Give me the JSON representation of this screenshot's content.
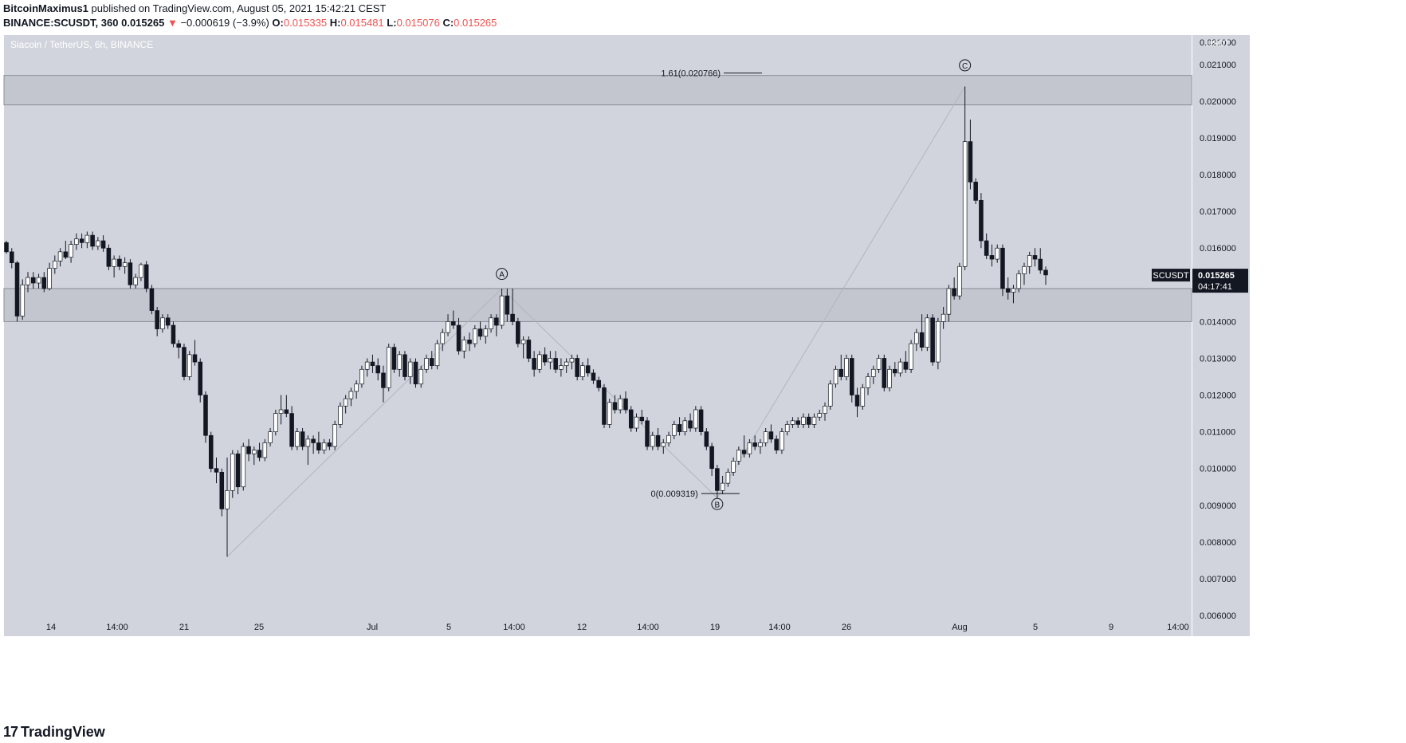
{
  "header": {
    "author": "BitcoinMaximus1",
    "published": " published on TradingView.com, August 05, 2021 15:42:21 CEST",
    "symbol_line": "BINANCE:SCUSDT, 360",
    "last": "0.015265",
    "change_arrow": "▼",
    "change": "−0.000619 (−3.9%)",
    "o_label": "O:",
    "o_value": "0.015335",
    "h_label": "H:",
    "h_value": "0.015481",
    "l_label": "L:",
    "l_value": "0.015076",
    "c_label": "C:",
    "c_value": "0.015265"
  },
  "footer": {
    "logo_glyph": "17",
    "brand": "TradingView"
  },
  "colors": {
    "plot_bg": "#d1d4dc",
    "frame": "#ffffff",
    "zone_fill": "#c3c6cf",
    "zone_border": "#8a8d95",
    "candle_up": "#ffffff",
    "candle_down": "#131722",
    "wave_line": "#b2b5be",
    "text": "#131722",
    "red": "#ef5350",
    "price_label_bg": "#131722"
  },
  "chart_data": {
    "type": "candlestick",
    "title": "Siacoin / TetherUS, 6h, BINANCE",
    "currency_label": "USDT",
    "ylim": [
      0.006,
      0.0218
    ],
    "y_ticks": [
      "0.006000",
      "0.007000",
      "0.008000",
      "0.009000",
      "0.010000",
      "0.011000",
      "0.012000",
      "0.013000",
      "0.014000",
      "0.015000",
      "0.016000",
      "0.017000",
      "0.018000",
      "0.019000",
      "0.020000",
      "0.021000",
      "0.021000"
    ],
    "x_ticks": [
      "14",
      "14:00",
      "21",
      "25",
      "Jul",
      "5",
      "14:00",
      "12",
      "14:00",
      "19",
      "14:00",
      "26",
      "Aug",
      "5",
      "9",
      "14:00"
    ],
    "last_price": {
      "symbol": "SCUSDT",
      "value": "0.015265",
      "countdown": "04:17:41"
    },
    "zones": [
      {
        "low": 0.0199,
        "high": 0.0207
      },
      {
        "low": 0.014,
        "high": 0.0149
      }
    ],
    "fib_levels": [
      {
        "label": "1.61(0.020766)",
        "price": 0.020766
      },
      {
        "label": "0(0.009319)",
        "price": 0.009319
      }
    ],
    "wave_labels": [
      {
        "label": "A",
        "price": 0.01495
      },
      {
        "label": "B",
        "price": 0.00925
      },
      {
        "label": "C",
        "price": 0.02063
      }
    ],
    "candles": [
      [
        0.01615,
        0.0162,
        0.01585,
        0.0159
      ],
      [
        0.0159,
        0.016,
        0.01545,
        0.0156
      ],
      [
        0.0156,
        0.01565,
        0.014,
        0.01415
      ],
      [
        0.01415,
        0.01515,
        0.01405,
        0.015
      ],
      [
        0.015,
        0.01535,
        0.0148,
        0.0152
      ],
      [
        0.0152,
        0.01535,
        0.0149,
        0.01505
      ],
      [
        0.01505,
        0.0153,
        0.0149,
        0.0152
      ],
      [
        0.0152,
        0.01535,
        0.0148,
        0.0149
      ],
      [
        0.0149,
        0.0156,
        0.01485,
        0.01545
      ],
      [
        0.01545,
        0.0158,
        0.0153,
        0.01565
      ],
      [
        0.01565,
        0.016,
        0.0155,
        0.0159
      ],
      [
        0.0159,
        0.0162,
        0.0157,
        0.01575
      ],
      [
        0.01575,
        0.0162,
        0.0156,
        0.0161
      ],
      [
        0.0161,
        0.0164,
        0.01595,
        0.01625
      ],
      [
        0.01625,
        0.0164,
        0.016,
        0.01615
      ],
      [
        0.01615,
        0.01645,
        0.016,
        0.01635
      ],
      [
        0.01635,
        0.01645,
        0.01595,
        0.01605
      ],
      [
        0.01605,
        0.0163,
        0.01595,
        0.0162
      ],
      [
        0.0162,
        0.01635,
        0.0159,
        0.016
      ],
      [
        0.016,
        0.0161,
        0.0154,
        0.0155
      ],
      [
        0.0155,
        0.0158,
        0.0152,
        0.0157
      ],
      [
        0.0157,
        0.0158,
        0.0154,
        0.0155
      ],
      [
        0.0155,
        0.01575,
        0.0153,
        0.0156
      ],
      [
        0.0156,
        0.0157,
        0.0149,
        0.015
      ],
      [
        0.015,
        0.0153,
        0.0149,
        0.0152
      ],
      [
        0.0152,
        0.0156,
        0.0151,
        0.01555
      ],
      [
        0.01555,
        0.01565,
        0.0148,
        0.0149
      ],
      [
        0.0149,
        0.015,
        0.0142,
        0.0143
      ],
      [
        0.0143,
        0.0144,
        0.0136,
        0.0138
      ],
      [
        0.0138,
        0.0142,
        0.0137,
        0.0141
      ],
      [
        0.0141,
        0.0142,
        0.0138,
        0.0139
      ],
      [
        0.0139,
        0.014,
        0.0133,
        0.0134
      ],
      [
        0.0134,
        0.0135,
        0.013,
        0.0133
      ],
      [
        0.0133,
        0.0134,
        0.0124,
        0.0125
      ],
      [
        0.0125,
        0.0132,
        0.0124,
        0.0131
      ],
      [
        0.0131,
        0.0135,
        0.0128,
        0.0129
      ],
      [
        0.0129,
        0.013,
        0.0118,
        0.012
      ],
      [
        0.012,
        0.0121,
        0.0107,
        0.0109
      ],
      [
        0.0109,
        0.011,
        0.0099,
        0.01
      ],
      [
        0.01,
        0.0103,
        0.0096,
        0.0099
      ],
      [
        0.0099,
        0.01,
        0.0087,
        0.0089
      ],
      [
        0.0089,
        0.0103,
        0.0076,
        0.0094
      ],
      [
        0.0094,
        0.0105,
        0.0092,
        0.0104
      ],
      [
        0.0104,
        0.0105,
        0.0093,
        0.0095
      ],
      [
        0.0095,
        0.0107,
        0.0094,
        0.0106
      ],
      [
        0.0106,
        0.0108,
        0.0102,
        0.0104
      ],
      [
        0.0104,
        0.0106,
        0.0101,
        0.0105
      ],
      [
        0.0105,
        0.0107,
        0.0102,
        0.0103
      ],
      [
        0.0103,
        0.0108,
        0.0102,
        0.0107
      ],
      [
        0.0107,
        0.0111,
        0.0106,
        0.011
      ],
      [
        0.011,
        0.0116,
        0.0109,
        0.0115
      ],
      [
        0.0115,
        0.012,
        0.0112,
        0.0116
      ],
      [
        0.0116,
        0.012,
        0.0114,
        0.0115
      ],
      [
        0.0115,
        0.0117,
        0.0105,
        0.0106
      ],
      [
        0.0106,
        0.0111,
        0.0105,
        0.011
      ],
      [
        0.011,
        0.0111,
        0.0105,
        0.0106
      ],
      [
        0.0106,
        0.0109,
        0.0101,
        0.0108
      ],
      [
        0.0108,
        0.0109,
        0.0104,
        0.0107
      ],
      [
        0.0107,
        0.011,
        0.0104,
        0.0105
      ],
      [
        0.0105,
        0.0108,
        0.0104,
        0.0107
      ],
      [
        0.0107,
        0.0108,
        0.0105,
        0.0106
      ],
      [
        0.0106,
        0.0113,
        0.0105,
        0.0112
      ],
      [
        0.0112,
        0.0118,
        0.0111,
        0.0117
      ],
      [
        0.0117,
        0.012,
        0.0115,
        0.0119
      ],
      [
        0.0119,
        0.0122,
        0.0117,
        0.0121
      ],
      [
        0.0121,
        0.0124,
        0.0119,
        0.0123
      ],
      [
        0.0123,
        0.0128,
        0.0122,
        0.0127
      ],
      [
        0.0127,
        0.013,
        0.0125,
        0.0129
      ],
      [
        0.0129,
        0.0131,
        0.0126,
        0.0128
      ],
      [
        0.0128,
        0.013,
        0.0124,
        0.0126
      ],
      [
        0.0126,
        0.0128,
        0.0118,
        0.0122
      ],
      [
        0.0122,
        0.0134,
        0.0121,
        0.0133
      ],
      [
        0.0133,
        0.0134,
        0.0126,
        0.0127
      ],
      [
        0.0127,
        0.0132,
        0.0125,
        0.0131
      ],
      [
        0.0131,
        0.0132,
        0.0124,
        0.0125
      ],
      [
        0.0125,
        0.013,
        0.0123,
        0.0129
      ],
      [
        0.0129,
        0.013,
        0.0122,
        0.0123
      ],
      [
        0.0123,
        0.0128,
        0.0122,
        0.0127
      ],
      [
        0.0127,
        0.0131,
        0.0126,
        0.013
      ],
      [
        0.013,
        0.0132,
        0.0127,
        0.0128
      ],
      [
        0.0128,
        0.0135,
        0.0127,
        0.0134
      ],
      [
        0.0134,
        0.0138,
        0.0132,
        0.0137
      ],
      [
        0.0137,
        0.0142,
        0.0136,
        0.014
      ],
      [
        0.014,
        0.0143,
        0.0138,
        0.0139
      ],
      [
        0.0139,
        0.0141,
        0.0131,
        0.0132
      ],
      [
        0.0132,
        0.0136,
        0.013,
        0.0135
      ],
      [
        0.0135,
        0.0137,
        0.0132,
        0.0134
      ],
      [
        0.0134,
        0.0139,
        0.0133,
        0.0138
      ],
      [
        0.0138,
        0.014,
        0.0135,
        0.0136
      ],
      [
        0.0136,
        0.0139,
        0.0134,
        0.0138
      ],
      [
        0.0138,
        0.0142,
        0.0137,
        0.0141
      ],
      [
        0.0141,
        0.0142,
        0.0136,
        0.0139
      ],
      [
        0.0139,
        0.0149,
        0.0138,
        0.0147
      ],
      [
        0.0147,
        0.0149,
        0.014,
        0.0142
      ],
      [
        0.0142,
        0.0149,
        0.0139,
        0.014
      ],
      [
        0.014,
        0.0141,
        0.0133,
        0.0134
      ],
      [
        0.0134,
        0.0136,
        0.013,
        0.0135
      ],
      [
        0.0135,
        0.0136,
        0.0129,
        0.013
      ],
      [
        0.013,
        0.0132,
        0.0125,
        0.0127
      ],
      [
        0.0127,
        0.0132,
        0.0126,
        0.0131
      ],
      [
        0.0131,
        0.0133,
        0.0128,
        0.0129
      ],
      [
        0.0129,
        0.0132,
        0.0127,
        0.013
      ],
      [
        0.013,
        0.0132,
        0.0126,
        0.0127
      ],
      [
        0.0127,
        0.013,
        0.0125,
        0.0128
      ],
      [
        0.0128,
        0.013,
        0.0126,
        0.0129
      ],
      [
        0.0129,
        0.0131,
        0.0127,
        0.013
      ],
      [
        0.013,
        0.0131,
        0.0124,
        0.0125
      ],
      [
        0.0125,
        0.0129,
        0.0124,
        0.0128
      ],
      [
        0.0128,
        0.013,
        0.0125,
        0.0126
      ],
      [
        0.0126,
        0.0127,
        0.0123,
        0.0124
      ],
      [
        0.0124,
        0.0125,
        0.0121,
        0.0122
      ],
      [
        0.0122,
        0.0123,
        0.0111,
        0.0112
      ],
      [
        0.0112,
        0.0119,
        0.0111,
        0.0118
      ],
      [
        0.0118,
        0.012,
        0.0115,
        0.0116
      ],
      [
        0.0116,
        0.012,
        0.0115,
        0.0119
      ],
      [
        0.0119,
        0.0121,
        0.0115,
        0.0116
      ],
      [
        0.0116,
        0.0117,
        0.011,
        0.0111
      ],
      [
        0.0111,
        0.0115,
        0.011,
        0.0114
      ],
      [
        0.0114,
        0.0116,
        0.0112,
        0.0113
      ],
      [
        0.0113,
        0.0114,
        0.0105,
        0.0106
      ],
      [
        0.0106,
        0.011,
        0.0105,
        0.0109
      ],
      [
        0.0109,
        0.0111,
        0.0105,
        0.0106
      ],
      [
        0.0106,
        0.0108,
        0.0104,
        0.0107
      ],
      [
        0.0107,
        0.011,
        0.0106,
        0.0109
      ],
      [
        0.0109,
        0.0113,
        0.0108,
        0.0112
      ],
      [
        0.0112,
        0.0114,
        0.0109,
        0.011
      ],
      [
        0.011,
        0.0114,
        0.0109,
        0.0113
      ],
      [
        0.0113,
        0.0115,
        0.011,
        0.0111
      ],
      [
        0.0111,
        0.0117,
        0.011,
        0.0116
      ],
      [
        0.0116,
        0.0117,
        0.0109,
        0.011
      ],
      [
        0.011,
        0.0111,
        0.0105,
        0.0106
      ],
      [
        0.0106,
        0.0107,
        0.0098,
        0.01
      ],
      [
        0.01,
        0.0101,
        0.0092,
        0.0094
      ],
      [
        0.0094,
        0.0098,
        0.0093,
        0.0096
      ],
      [
        0.0096,
        0.01,
        0.0095,
        0.0099
      ],
      [
        0.0099,
        0.0103,
        0.0098,
        0.0102
      ],
      [
        0.0102,
        0.0106,
        0.0101,
        0.0105
      ],
      [
        0.0105,
        0.0109,
        0.0103,
        0.0104
      ],
      [
        0.0104,
        0.0108,
        0.0103,
        0.0107
      ],
      [
        0.0107,
        0.0109,
        0.0105,
        0.0106
      ],
      [
        0.0106,
        0.0108,
        0.0104,
        0.0107
      ],
      [
        0.0107,
        0.0111,
        0.0106,
        0.011
      ],
      [
        0.011,
        0.0112,
        0.0107,
        0.0108
      ],
      [
        0.0108,
        0.0109,
        0.0104,
        0.0105
      ],
      [
        0.0105,
        0.0111,
        0.0104,
        0.011
      ],
      [
        0.011,
        0.0113,
        0.0109,
        0.0112
      ],
      [
        0.0112,
        0.0114,
        0.0111,
        0.0113
      ],
      [
        0.0113,
        0.0114,
        0.0111,
        0.0112
      ],
      [
        0.0112,
        0.0115,
        0.0111,
        0.0114
      ],
      [
        0.0114,
        0.0115,
        0.0111,
        0.0112
      ],
      [
        0.0112,
        0.0115,
        0.0111,
        0.0114
      ],
      [
        0.0114,
        0.0116,
        0.0113,
        0.0115
      ],
      [
        0.0115,
        0.0118,
        0.0113,
        0.0117
      ],
      [
        0.0117,
        0.0124,
        0.0116,
        0.0123
      ],
      [
        0.0123,
        0.0128,
        0.0122,
        0.0127
      ],
      [
        0.0127,
        0.0131,
        0.0124,
        0.0125
      ],
      [
        0.0125,
        0.0131,
        0.0124,
        0.013
      ],
      [
        0.013,
        0.0131,
        0.0118,
        0.012
      ],
      [
        0.012,
        0.0122,
        0.0114,
        0.0117
      ],
      [
        0.0117,
        0.0123,
        0.0116,
        0.0122
      ],
      [
        0.0122,
        0.0126,
        0.012,
        0.0125
      ],
      [
        0.0125,
        0.0128,
        0.0123,
        0.0127
      ],
      [
        0.0127,
        0.0131,
        0.0126,
        0.013
      ],
      [
        0.013,
        0.0131,
        0.0121,
        0.0122
      ],
      [
        0.0122,
        0.0128,
        0.0121,
        0.0127
      ],
      [
        0.0127,
        0.0129,
        0.0125,
        0.0126
      ],
      [
        0.0126,
        0.013,
        0.0125,
        0.0129
      ],
      [
        0.0129,
        0.0132,
        0.0126,
        0.0127
      ],
      [
        0.0127,
        0.0135,
        0.0126,
        0.0134
      ],
      [
        0.0134,
        0.0138,
        0.0132,
        0.0137
      ],
      [
        0.0137,
        0.0142,
        0.0132,
        0.0133
      ],
      [
        0.0133,
        0.0142,
        0.0132,
        0.0141
      ],
      [
        0.0141,
        0.0142,
        0.0128,
        0.0129
      ],
      [
        0.0129,
        0.0141,
        0.0127,
        0.014
      ],
      [
        0.014,
        0.0144,
        0.0138,
        0.0142
      ],
      [
        0.0142,
        0.015,
        0.014,
        0.0149
      ],
      [
        0.0149,
        0.0152,
        0.0146,
        0.0147
      ],
      [
        0.0147,
        0.0156,
        0.0146,
        0.0155
      ],
      [
        0.0155,
        0.0204,
        0.0154,
        0.0189
      ],
      [
        0.0189,
        0.0195,
        0.0176,
        0.0178
      ],
      [
        0.0178,
        0.0179,
        0.0172,
        0.0173
      ],
      [
        0.0173,
        0.0175,
        0.016,
        0.0162
      ],
      [
        0.0162,
        0.0164,
        0.0157,
        0.0158
      ],
      [
        0.0158,
        0.0161,
        0.0155,
        0.0157
      ],
      [
        0.0157,
        0.0161,
        0.0156,
        0.016
      ],
      [
        0.016,
        0.0161,
        0.0147,
        0.0149
      ],
      [
        0.0149,
        0.0152,
        0.0146,
        0.0148
      ],
      [
        0.0148,
        0.015,
        0.0145,
        0.0149
      ],
      [
        0.0149,
        0.0154,
        0.0148,
        0.0153
      ],
      [
        0.0153,
        0.0156,
        0.015,
        0.0155
      ],
      [
        0.0155,
        0.0159,
        0.0153,
        0.0158
      ],
      [
        0.0158,
        0.016,
        0.0155,
        0.0157
      ],
      [
        0.0157,
        0.016,
        0.0153,
        0.0154
      ],
      [
        0.0154,
        0.0155,
        0.015,
        0.01527
      ]
    ]
  }
}
